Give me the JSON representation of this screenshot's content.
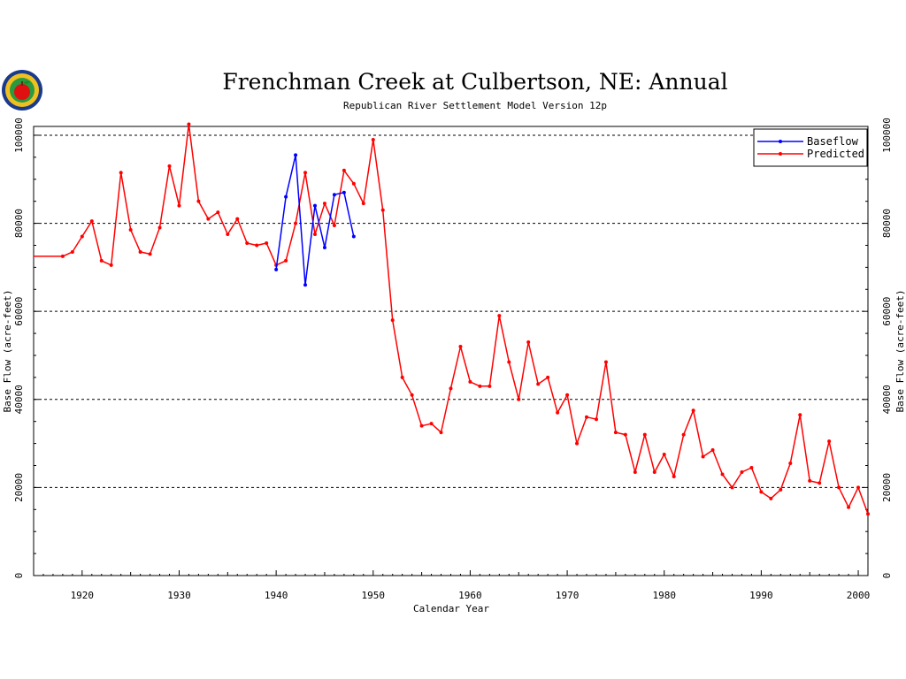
{
  "chart_data": {
    "type": "line",
    "title": "Frenchman Creek at Culbertson, NE: Annual",
    "subtitle": "Republican River Settlement Model Version 12p",
    "xlabel": "Calendar Year",
    "ylabel": "Base Flow (acre-feet)",
    "xlim": [
      1915,
      2001
    ],
    "ylim": [
      0,
      102000
    ],
    "x_ticks": [
      "1920",
      "1930",
      "1940",
      "1950",
      "1960",
      "1970",
      "1980",
      "1990",
      "2000"
    ],
    "y_ticks": [
      "0",
      "20000",
      "40000",
      "60000",
      "80000",
      "100000"
    ],
    "grid": "horizontal dashed",
    "legend_position": "top-right",
    "series": [
      {
        "name": "Baseflow",
        "color": "#0000ff",
        "x": [
          1940,
          1941,
          1942,
          1943,
          1944,
          1945,
          1946,
          1947,
          1948
        ],
        "y": [
          69500,
          86000,
          95500,
          66000,
          84000,
          74500,
          86500,
          87000,
          77000
        ]
      },
      {
        "name": "Predicted",
        "color": "#ff0000",
        "x": [
          1915,
          1918,
          1919,
          1920,
          1921,
          1922,
          1923,
          1924,
          1925,
          1926,
          1927,
          1928,
          1929,
          1930,
          1931,
          1932,
          1933,
          1934,
          1935,
          1936,
          1937,
          1938,
          1939,
          1940,
          1941,
          1942,
          1943,
          1944,
          1945,
          1946,
          1947,
          1948,
          1949,
          1950,
          1951,
          1952,
          1953,
          1954,
          1955,
          1956,
          1957,
          1958,
          1959,
          1960,
          1961,
          1962,
          1963,
          1964,
          1965,
          1966,
          1967,
          1968,
          1969,
          1970,
          1971,
          1972,
          1973,
          1974,
          1975,
          1976,
          1977,
          1978,
          1979,
          1980,
          1981,
          1982,
          1983,
          1984,
          1985,
          1986,
          1987,
          1988,
          1989,
          1990,
          1991,
          1992,
          1993,
          1994,
          1995,
          1996,
          1997,
          1998,
          1999,
          2000,
          2001
        ],
        "y": [
          72500,
          72500,
          73500,
          77000,
          80500,
          71500,
          70500,
          91500,
          78500,
          73500,
          73000,
          79000,
          93000,
          84000,
          102500,
          85000,
          81000,
          82500,
          77500,
          81000,
          75500,
          75000,
          75500,
          70500,
          71500,
          80000,
          91500,
          77500,
          84500,
          79500,
          92000,
          89000,
          84500,
          99000,
          83000,
          58000,
          45000,
          41000,
          34000,
          34500,
          32500,
          42500,
          52000,
          44000,
          43000,
          43000,
          59000,
          48500,
          40000,
          53000,
          43500,
          45000,
          37000,
          41000,
          30000,
          36000,
          35500,
          48500,
          32500,
          32000,
          23500,
          32000,
          23500,
          27500,
          22500,
          32000,
          37500,
          27000,
          28500,
          23000,
          20000,
          23500,
          24500,
          19000,
          17500,
          19500,
          25500,
          36500,
          21500,
          21000,
          30500,
          20000,
          15500,
          20000,
          14000
        ]
      }
    ]
  }
}
